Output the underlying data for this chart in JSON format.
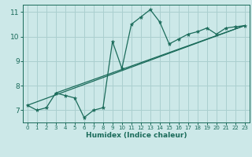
{
  "xlabel": "Humidex (Indice chaleur)",
  "ylabel": "",
  "bg_color": "#cce8e8",
  "grid_color": "#aacfcf",
  "line_color": "#1a6b5a",
  "xlim": [
    -0.5,
    23.5
  ],
  "ylim": [
    6.5,
    11.3
  ],
  "xticks": [
    0,
    1,
    2,
    3,
    4,
    5,
    6,
    7,
    8,
    9,
    10,
    11,
    12,
    13,
    14,
    15,
    16,
    17,
    18,
    19,
    20,
    21,
    22,
    23
  ],
  "yticks": [
    7,
    8,
    9,
    10,
    11
  ],
  "curve_x": [
    0,
    1,
    2,
    3,
    4,
    5,
    6,
    7,
    8,
    9,
    10,
    11,
    12,
    13,
    14,
    15,
    16,
    17,
    18,
    19,
    20,
    21,
    22,
    23
  ],
  "curve_y": [
    7.2,
    7.0,
    7.1,
    7.7,
    7.6,
    7.5,
    6.7,
    7.0,
    7.1,
    9.8,
    8.7,
    10.5,
    10.8,
    11.1,
    10.6,
    9.7,
    9.9,
    10.1,
    10.2,
    10.35,
    10.1,
    10.35,
    10.4,
    10.45
  ],
  "straight_line": [
    [
      0,
      7.2
    ],
    [
      23,
      10.45
    ]
  ],
  "straight_line2": [
    [
      3,
      7.7
    ],
    [
      23,
      10.45
    ]
  ]
}
